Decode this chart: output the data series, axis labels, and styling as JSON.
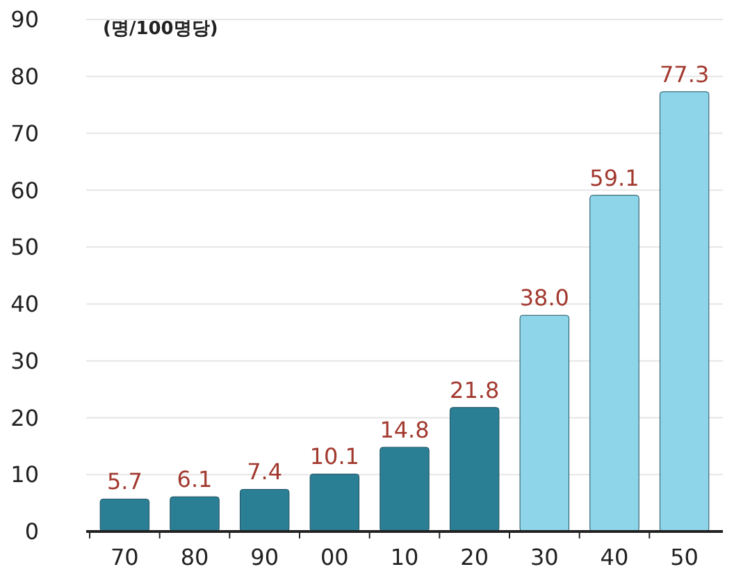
{
  "chart_data": {
    "type": "bar",
    "ylabel": "(명/100명당)",
    "categories": [
      "70",
      "80",
      "90",
      "00",
      "10",
      "20",
      "30",
      "40",
      "50"
    ],
    "values": [
      5.7,
      6.1,
      7.4,
      10.1,
      14.8,
      21.8,
      38.0,
      59.1,
      77.3
    ],
    "value_labels": [
      "5.7",
      "6.1",
      "7.4",
      "10.1",
      "14.8",
      "21.8",
      "38.0",
      "59.1",
      "77.3"
    ],
    "colors": [
      "#2b7f95",
      "#2b7f95",
      "#2b7f95",
      "#2b7f95",
      "#2b7f95",
      "#2b7f95",
      "#8fd5ea",
      "#8fd5ea",
      "#8fd5ea"
    ],
    "ylim": [
      0,
      90
    ],
    "yticks": [
      0,
      10,
      20,
      30,
      40,
      50,
      60,
      70,
      80,
      90
    ],
    "grid": "y"
  }
}
